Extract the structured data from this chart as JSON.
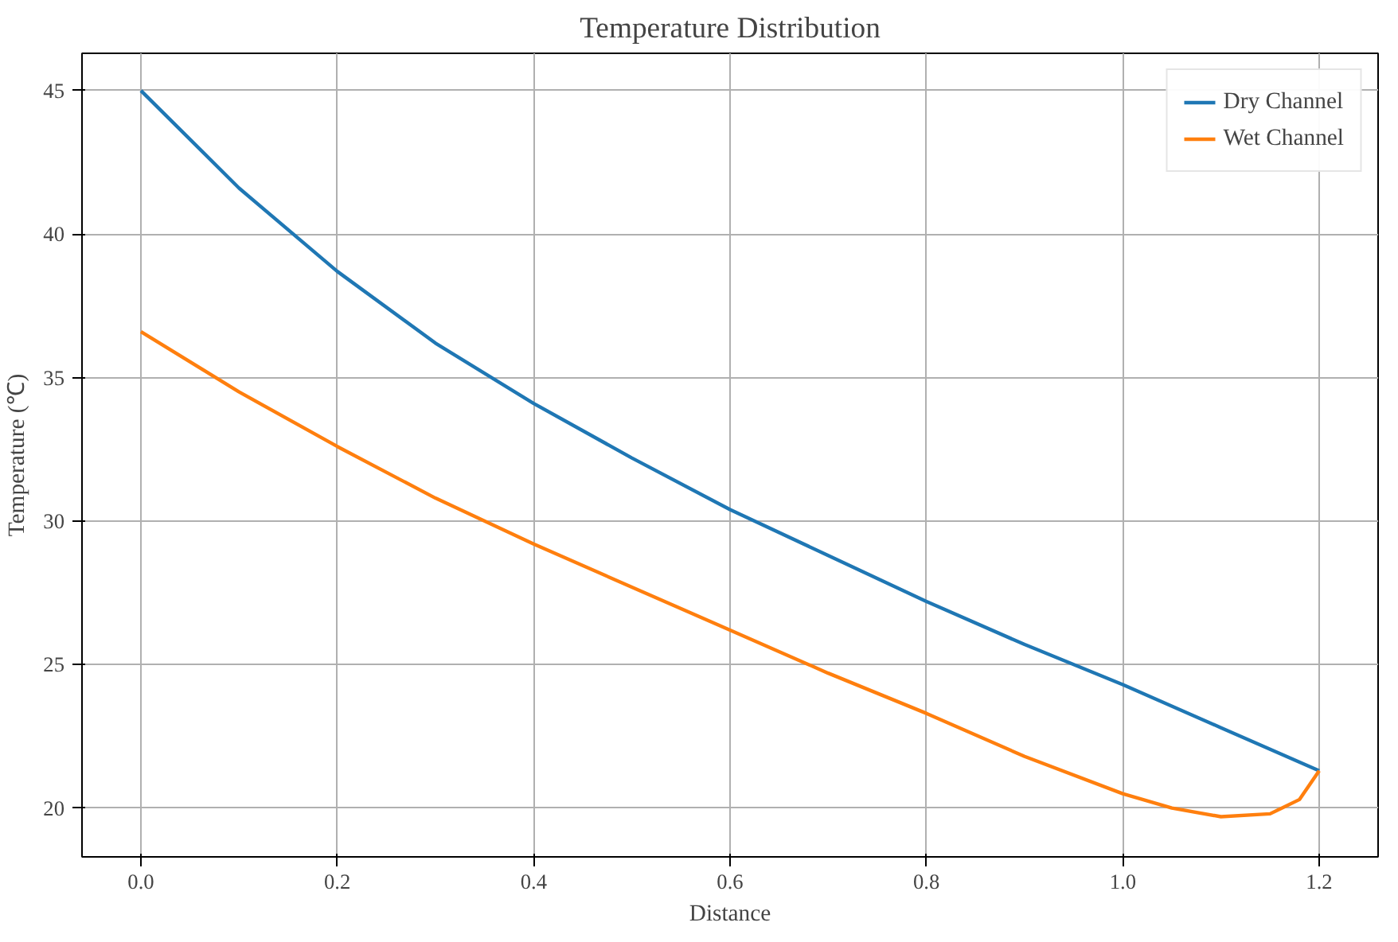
{
  "chart_data": {
    "type": "line",
    "title": "Temperature Distribution",
    "xlabel": "Distance",
    "ylabel": "Temperature (℃)",
    "xlim": [
      -0.06,
      1.26
    ],
    "ylim": [
      18.3,
      46.3
    ],
    "xticks": [
      {
        "value": 0,
        "label": "0.0"
      },
      0.2,
      0.4,
      0.6,
      0.8,
      {
        "value": 1,
        "label": "1.0"
      },
      1.2
    ],
    "yticks": [
      20,
      25,
      30,
      35,
      40,
      45
    ],
    "grid": true,
    "legend": "top right",
    "line_style": "solid",
    "series": [
      {
        "name": "Dry Channel",
        "color": "#1f77b4",
        "x": [
          0,
          0.1,
          0.2,
          0.3,
          0.4,
          0.5,
          0.6,
          0.7,
          0.8,
          0.9,
          1.0,
          1.1,
          1.2
        ],
        "values": [
          45,
          41.6,
          38.7,
          36.2,
          34.1,
          32.2,
          30.4,
          28.8,
          27.2,
          25.7,
          24.3,
          22.8,
          21.3
        ]
      },
      {
        "name": "Wet Channel",
        "color": "#ff7f0e",
        "x": [
          0,
          0.1,
          0.2,
          0.3,
          0.4,
          0.5,
          0.6,
          0.7,
          0.8,
          0.9,
          1.0,
          1.05,
          1.1,
          1.15,
          1.18,
          1.2
        ],
        "values": [
          36.6,
          34.5,
          32.6,
          30.8,
          29.2,
          27.7,
          26.2,
          24.7,
          23.3,
          21.8,
          20.5,
          20.0,
          19.7,
          19.8,
          20.3,
          21.3
        ]
      }
    ]
  }
}
